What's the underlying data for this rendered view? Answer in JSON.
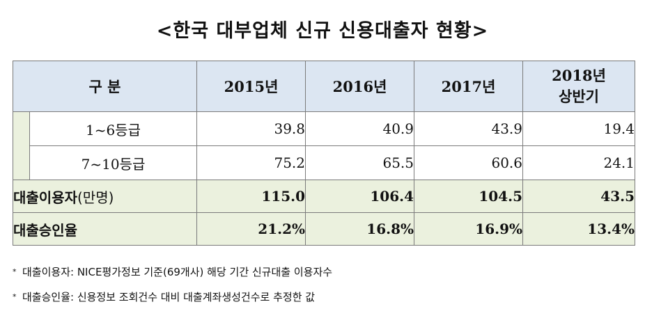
{
  "title": "<한국 대부업체 신규 신용대출자 현황>",
  "table": {
    "header": {
      "category": "구  분",
      "years": [
        "2015년",
        "2016년",
        "2017년"
      ],
      "last_line1": "2018년",
      "last_line2": "상반기"
    },
    "rows": [
      {
        "label": "1~6등급",
        "values": [
          "39.8",
          "40.9",
          "43.9",
          "19.4"
        ]
      },
      {
        "label": "7~10등급",
        "values": [
          "75.2",
          "65.5",
          "60.6",
          "24.1"
        ]
      }
    ],
    "total": {
      "label": "대출이용자",
      "unit": "(만명)",
      "values": [
        "115.0",
        "106.4",
        "104.5",
        "43.5"
      ]
    },
    "rate": {
      "label": "대출승인율",
      "values": [
        "21.2%",
        "16.8%",
        "16.9%",
        "13.4%"
      ]
    }
  },
  "notes": [
    {
      "bullet": "*",
      "text": "대출이용자: NICE평가정보 기준(69개사) 해당 기간 신규대출 이용자수"
    },
    {
      "bullet": "*",
      "text": "대출승인율: 신용정보 조회건수 대비 대출계좌생성건수로 추정한 값"
    }
  ]
}
